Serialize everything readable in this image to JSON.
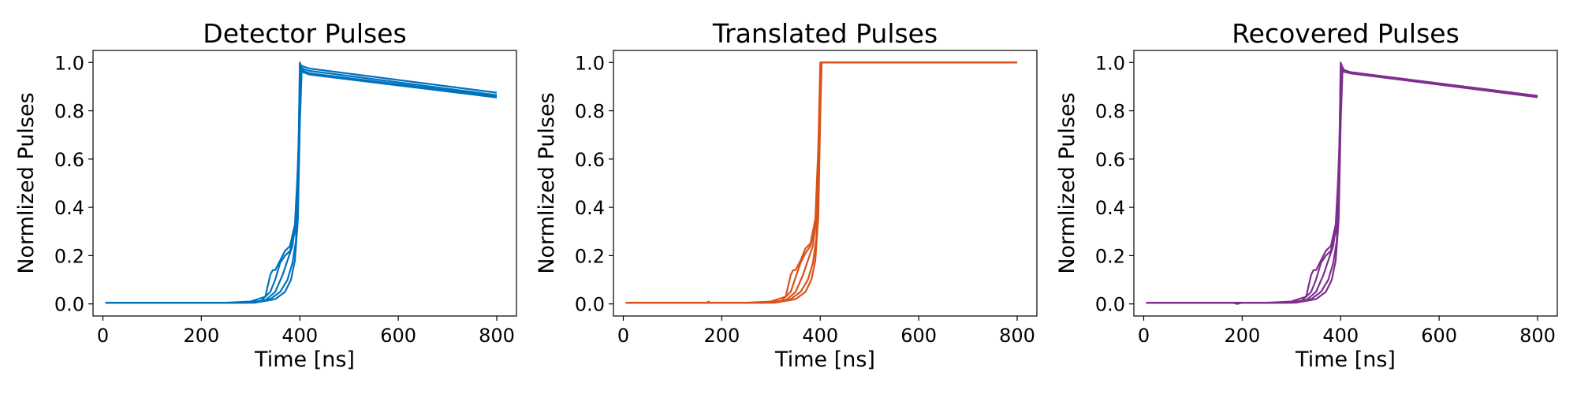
{
  "chart_data": [
    {
      "type": "line",
      "title": "Detector Pulses",
      "xlabel": "Time [ns]",
      "ylabel": "Normlized Pulses",
      "xlim": [
        -20,
        840
      ],
      "ylim": [
        -0.05,
        1.05
      ],
      "xticks": [
        0,
        200,
        400,
        600,
        800
      ],
      "xtick_labels": [
        "0",
        "200",
        "400",
        "600",
        "800"
      ],
      "yticks": [
        0.0,
        0.2,
        0.4,
        0.6,
        0.8,
        1.0
      ],
      "ytick_labels": [
        "0.0",
        "0.2",
        "0.4",
        "0.6",
        "0.8",
        "1.0"
      ],
      "grid": false,
      "color": "#0072bd",
      "series": [
        {
          "x": [
            5,
            250,
            300,
            330,
            340,
            345,
            350,
            360,
            370,
            380,
            390,
            397,
            400,
            405,
            420,
            800
          ],
          "y": [
            0.005,
            0.005,
            0.01,
            0.03,
            0.12,
            0.14,
            0.14,
            0.18,
            0.22,
            0.24,
            0.33,
            0.6,
            1.0,
            0.975,
            0.965,
            0.865
          ]
        },
        {
          "x": [
            5,
            280,
            320,
            340,
            350,
            360,
            370,
            380,
            390,
            397,
            400,
            405,
            420,
            800
          ],
          "y": [
            0.005,
            0.005,
            0.01,
            0.05,
            0.1,
            0.17,
            0.2,
            0.22,
            0.3,
            0.55,
            0.99,
            0.985,
            0.975,
            0.875
          ]
        },
        {
          "x": [
            5,
            290,
            330,
            350,
            365,
            375,
            385,
            392,
            398,
            401,
            405,
            420,
            800
          ],
          "y": [
            0.005,
            0.005,
            0.015,
            0.05,
            0.12,
            0.18,
            0.24,
            0.35,
            0.7,
            0.985,
            0.965,
            0.955,
            0.855
          ]
        },
        {
          "x": [
            5,
            300,
            340,
            360,
            375,
            385,
            392,
            398,
            402,
            406,
            420,
            800
          ],
          "y": [
            0.005,
            0.005,
            0.02,
            0.05,
            0.1,
            0.17,
            0.26,
            0.6,
            0.975,
            0.96,
            0.95,
            0.855
          ]
        },
        {
          "x": [
            5,
            310,
            350,
            370,
            382,
            390,
            396,
            400,
            404,
            408,
            420,
            800
          ],
          "y": [
            0.005,
            0.005,
            0.02,
            0.05,
            0.1,
            0.18,
            0.35,
            0.75,
            0.98,
            0.965,
            0.955,
            0.86
          ]
        }
      ]
    },
    {
      "type": "line",
      "title": "Translated Pulses",
      "xlabel": "Time [ns]",
      "ylabel": "Normlized Pulses",
      "xlim": [
        -20,
        840
      ],
      "ylim": [
        -0.05,
        1.05
      ],
      "xticks": [
        0,
        200,
        400,
        600,
        800
      ],
      "xtick_labels": [
        "0",
        "200",
        "400",
        "600",
        "800"
      ],
      "yticks": [
        0.0,
        0.2,
        0.4,
        0.6,
        0.8,
        1.0
      ],
      "ytick_labels": [
        "0.0",
        "0.2",
        "0.4",
        "0.6",
        "0.8",
        "1.0"
      ],
      "grid": false,
      "color": "#d95319",
      "series": [
        {
          "x": [
            5,
            170,
            173,
            176,
            250,
            300,
            330,
            340,
            345,
            350,
            360,
            370,
            380,
            390,
            396,
            400,
            800
          ],
          "y": [
            0.005,
            0.005,
            0.01,
            0.005,
            0.005,
            0.01,
            0.03,
            0.12,
            0.14,
            0.14,
            0.18,
            0.23,
            0.25,
            0.35,
            0.65,
            1.0,
            1.0
          ]
        },
        {
          "x": [
            5,
            280,
            320,
            340,
            350,
            360,
            370,
            380,
            390,
            396,
            401,
            800
          ],
          "y": [
            0.005,
            0.005,
            0.01,
            0.05,
            0.11,
            0.17,
            0.21,
            0.24,
            0.32,
            0.6,
            1.0,
            1.0
          ]
        },
        {
          "x": [
            5,
            290,
            330,
            350,
            365,
            375,
            385,
            392,
            398,
            401,
            800
          ],
          "y": [
            0.005,
            0.005,
            0.015,
            0.05,
            0.12,
            0.18,
            0.24,
            0.36,
            0.72,
            1.0,
            1.0
          ]
        },
        {
          "x": [
            5,
            300,
            340,
            360,
            375,
            385,
            392,
            398,
            402,
            800
          ],
          "y": [
            0.005,
            0.005,
            0.02,
            0.05,
            0.1,
            0.17,
            0.27,
            0.62,
            1.0,
            1.0
          ]
        },
        {
          "x": [
            5,
            310,
            350,
            370,
            382,
            390,
            396,
            400,
            403,
            800
          ],
          "y": [
            0.005,
            0.005,
            0.02,
            0.05,
            0.1,
            0.18,
            0.36,
            0.78,
            1.0,
            1.0
          ]
        }
      ]
    },
    {
      "type": "line",
      "title": "Recovered Pulses",
      "xlabel": "Time [ns]",
      "ylabel": "Normlized Pulses",
      "xlim": [
        -20,
        840
      ],
      "ylim": [
        -0.05,
        1.05
      ],
      "xticks": [
        0,
        200,
        400,
        600,
        800
      ],
      "xtick_labels": [
        "0",
        "200",
        "400",
        "600",
        "800"
      ],
      "yticks": [
        0.0,
        0.2,
        0.4,
        0.6,
        0.8,
        1.0
      ],
      "ytick_labels": [
        "0.0",
        "0.2",
        "0.4",
        "0.6",
        "0.8",
        "1.0"
      ],
      "grid": false,
      "color": "#7e2f8e",
      "series": [
        {
          "x": [
            5,
            180,
            190,
            200,
            250,
            300,
            330,
            340,
            345,
            350,
            360,
            370,
            380,
            390,
            397,
            400,
            405,
            420,
            800
          ],
          "y": [
            0.005,
            0.005,
            0.0,
            0.005,
            0.005,
            0.01,
            0.03,
            0.12,
            0.14,
            0.14,
            0.18,
            0.22,
            0.24,
            0.33,
            0.6,
            1.0,
            0.97,
            0.96,
            0.86
          ]
        },
        {
          "x": [
            5,
            280,
            320,
            340,
            350,
            360,
            370,
            380,
            390,
            397,
            400,
            405,
            420,
            800
          ],
          "y": [
            0.005,
            0.005,
            0.01,
            0.05,
            0.1,
            0.17,
            0.2,
            0.22,
            0.3,
            0.55,
            0.99,
            0.97,
            0.96,
            0.862
          ]
        },
        {
          "x": [
            5,
            290,
            330,
            350,
            365,
            375,
            385,
            392,
            398,
            401,
            405,
            420,
            800
          ],
          "y": [
            0.005,
            0.005,
            0.015,
            0.05,
            0.12,
            0.18,
            0.24,
            0.35,
            0.7,
            0.985,
            0.965,
            0.958,
            0.858
          ]
        },
        {
          "x": [
            5,
            300,
            340,
            360,
            375,
            385,
            392,
            398,
            402,
            406,
            420,
            800
          ],
          "y": [
            0.005,
            0.005,
            0.02,
            0.05,
            0.1,
            0.17,
            0.26,
            0.6,
            0.975,
            0.962,
            0.955,
            0.856
          ]
        },
        {
          "x": [
            5,
            310,
            350,
            370,
            382,
            390,
            396,
            400,
            404,
            408,
            420,
            800
          ],
          "y": [
            0.005,
            0.005,
            0.02,
            0.05,
            0.1,
            0.18,
            0.35,
            0.75,
            0.98,
            0.965,
            0.957,
            0.858
          ]
        }
      ]
    }
  ]
}
